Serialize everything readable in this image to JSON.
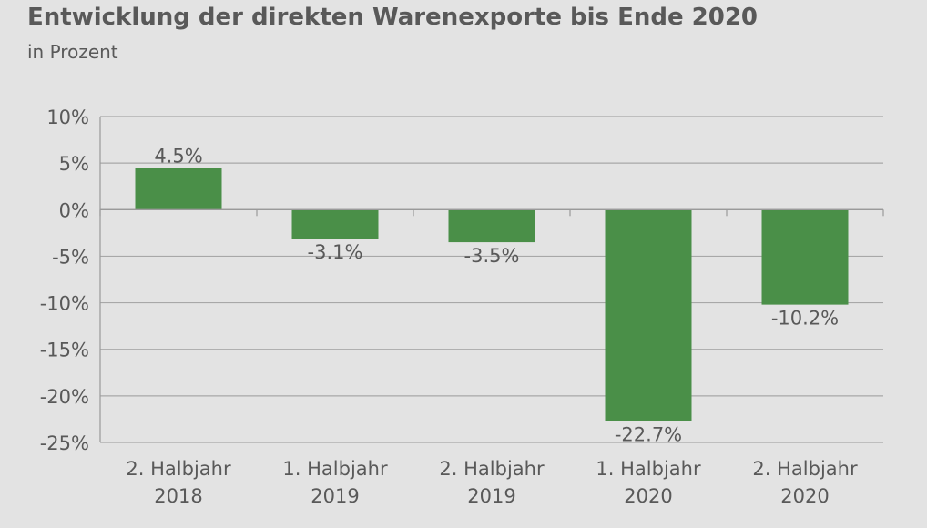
{
  "chart_data": {
    "type": "bar",
    "title": "Entwicklung der direkten Warenexporte bis Ende 2020",
    "subtitle": "in Prozent",
    "categories": [
      [
        "2. Halbjahr",
        "2018"
      ],
      [
        "1. Halbjahr",
        "2019"
      ],
      [
        "2. Halbjahr",
        "2019"
      ],
      [
        "1. Halbjahr",
        "2020"
      ],
      [
        "2. Halbjahr",
        "2020"
      ]
    ],
    "values": [
      4.5,
      -3.1,
      -3.5,
      -22.7,
      -10.2
    ],
    "data_labels": [
      "4.5%",
      "-3.1%",
      "-3.5%",
      "-22.7%",
      "-10.2%"
    ],
    "ylim": [
      -25,
      10
    ],
    "yticks": [
      10,
      5,
      0,
      -5,
      -10,
      -15,
      -20,
      -25
    ],
    "ytick_labels": [
      "10%",
      "5%",
      "0%",
      "-5%",
      "-10%",
      "-15%",
      "-20%",
      "-25%"
    ],
    "xlabel": "",
    "ylabel": "",
    "grid": true,
    "colors": {
      "bar": "#4a8f48",
      "grid": "#a8a8a8",
      "axis": "#9a9a9a",
      "background": "#e3e3e3"
    }
  }
}
